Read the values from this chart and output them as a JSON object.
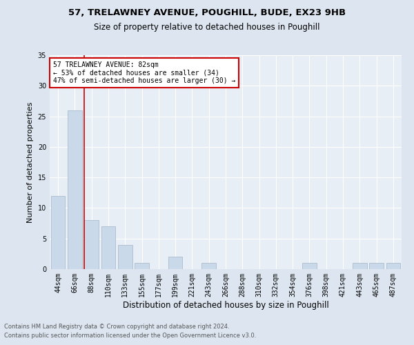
{
  "title1": "57, TRELAWNEY AVENUE, POUGHILL, BUDE, EX23 9HB",
  "title2": "Size of property relative to detached houses in Poughill",
  "xlabel": "Distribution of detached houses by size in Poughill",
  "ylabel": "Number of detached properties",
  "footnote1": "Contains HM Land Registry data © Crown copyright and database right 2024.",
  "footnote2": "Contains public sector information licensed under the Open Government Licence v3.0.",
  "bar_labels": [
    "44sqm",
    "66sqm",
    "88sqm",
    "110sqm",
    "133sqm",
    "155sqm",
    "177sqm",
    "199sqm",
    "221sqm",
    "243sqm",
    "266sqm",
    "288sqm",
    "310sqm",
    "332sqm",
    "354sqm",
    "376sqm",
    "398sqm",
    "421sqm",
    "443sqm",
    "465sqm",
    "487sqm"
  ],
  "bar_values": [
    12,
    26,
    8,
    7,
    4,
    1,
    0,
    2,
    0,
    1,
    0,
    0,
    0,
    0,
    0,
    1,
    0,
    0,
    1,
    1,
    1
  ],
  "bar_color": "#c9d9ea",
  "bar_edgecolor": "#aabcce",
  "vline_color": "#cc0000",
  "vline_x": 1.57,
  "annotation_title": "57 TRELAWNEY AVENUE: 82sqm",
  "annotation_line1": "← 53% of detached houses are smaller (34)",
  "annotation_line2": "47% of semi-detached houses are larger (30) →",
  "annotation_box_facecolor": "#ffffff",
  "annotation_box_edgecolor": "#cc0000",
  "ylim": [
    0,
    35
  ],
  "yticks": [
    0,
    5,
    10,
    15,
    20,
    25,
    30,
    35
  ],
  "bg_color": "#dde6f0",
  "plot_bg_color": "#e8eef5",
  "title1_fontsize": 9.5,
  "title2_fontsize": 8.5,
  "xlabel_fontsize": 8.5,
  "ylabel_fontsize": 8,
  "tick_fontsize": 7,
  "annot_fontsize": 7,
  "footnote_fontsize": 6
}
